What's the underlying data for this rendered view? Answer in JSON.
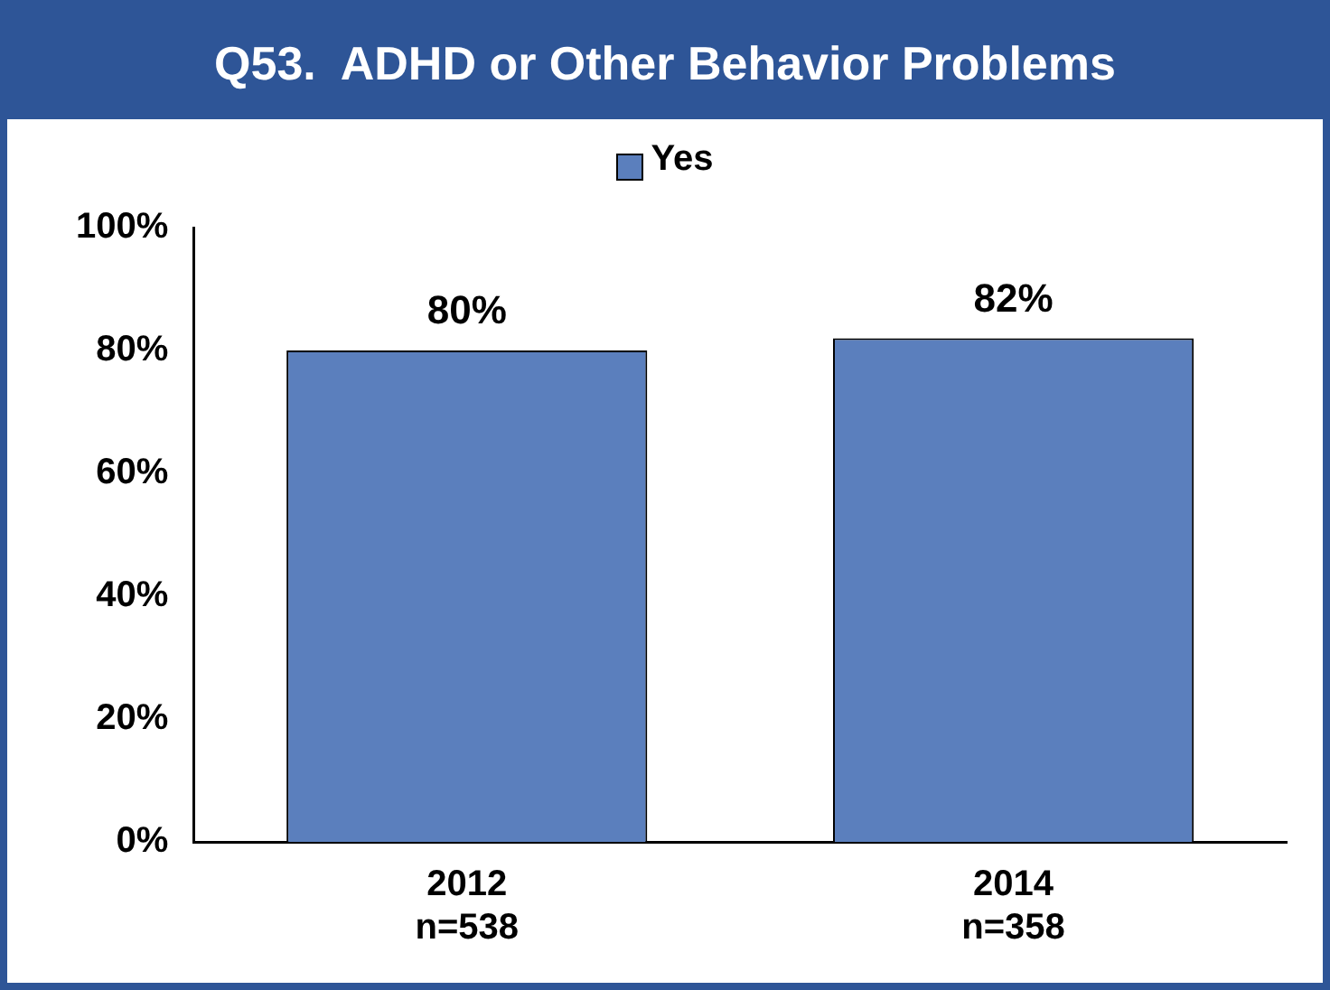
{
  "chart_data": {
    "type": "bar",
    "title": "Q53.  ADHD or Other Behavior Problems",
    "categories": [
      "2012\nn=538",
      "2014\nn=358"
    ],
    "series": [
      {
        "name": "Yes",
        "color": "#5b7fbd",
        "values": [
          80,
          82
        ]
      }
    ],
    "ylim": [
      0,
      100
    ],
    "yticks": [
      {
        "value": 0,
        "label": "0%"
      },
      {
        "value": 20,
        "label": "20%"
      },
      {
        "value": 40,
        "label": "40%"
      },
      {
        "value": 60,
        "label": "60%"
      },
      {
        "value": 80,
        "label": "80%"
      },
      {
        "value": 100,
        "label": "100%"
      }
    ],
    "value_labels": [
      "80%",
      "82%"
    ],
    "grid": false,
    "legend": "top"
  }
}
